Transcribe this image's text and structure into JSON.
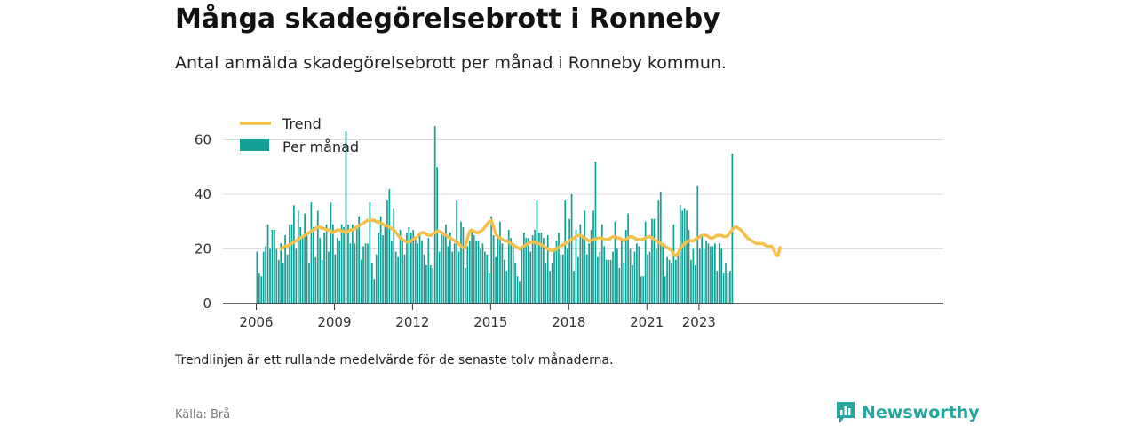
{
  "title": "Många skadegörelsebrott i Ronneby",
  "subtitle": "Antal anmälda skadegörelsebrott per månad i Ronneby kommun.",
  "footnote": "Trendlinjen är ett rullande medelvärde för de senaste tolv månaderna.",
  "source": "Källa: Brå",
  "brand": {
    "name": "Newsworthy",
    "color": "#27a6a0",
    "icon": "newsworthy-logo-icon"
  },
  "colors": {
    "bars": "#13a096",
    "trend": "#f5c04a",
    "grid": "#dddddd",
    "axis": "#333333"
  },
  "chart_data": {
    "type": "bar",
    "x_start": "2006-01",
    "x_label_unit": "month",
    "ylim": [
      0,
      65
    ],
    "yticks": [
      0,
      20,
      40,
      60
    ],
    "xticks": [
      "2006",
      "2009",
      "2012",
      "2015",
      "2018",
      "2021",
      "2023"
    ],
    "legend": {
      "position": "top-left",
      "entries": [
        "Trend",
        "Per månad"
      ]
    },
    "grid": true,
    "series": [
      {
        "name": "Per månad",
        "type": "bar",
        "values": [
          19,
          11,
          10,
          19,
          21,
          29,
          20,
          27,
          27,
          20,
          16,
          22,
          15,
          25,
          18,
          29,
          29,
          36,
          20,
          34,
          28,
          25,
          33,
          25,
          15,
          37,
          28,
          17,
          34,
          24,
          16,
          26,
          29,
          19,
          37,
          29,
          18,
          24,
          23,
          29,
          28,
          63,
          29,
          22,
          29,
          22,
          28,
          32,
          16,
          21,
          22,
          22,
          37,
          15,
          9,
          18,
          26,
          32,
          25,
          28,
          38,
          42,
          23,
          35,
          19,
          17,
          27,
          24,
          18,
          26,
          28,
          26,
          27,
          24,
          22,
          25,
          23,
          18,
          14,
          24,
          14,
          13,
          65,
          50,
          19,
          26,
          25,
          29,
          21,
          26,
          19,
          22,
          38,
          19,
          30,
          28,
          13,
          21,
          23,
          27,
          25,
          23,
          23,
          20,
          22,
          19,
          18,
          11,
          32,
          25,
          17,
          24,
          30,
          22,
          16,
          12,
          27,
          24,
          21,
          15,
          10,
          8,
          21,
          26,
          24,
          24,
          19,
          25,
          27,
          38,
          26,
          26,
          24,
          15,
          25,
          12,
          15,
          20,
          23,
          26,
          18,
          18,
          38,
          20,
          31,
          40,
          12,
          27,
          17,
          29,
          24,
          34,
          18,
          22,
          27,
          34,
          52,
          17,
          19,
          29,
          21,
          16,
          16,
          16,
          19,
          30,
          20,
          13,
          24,
          15,
          27,
          33,
          20,
          14,
          19,
          22,
          21,
          10,
          10,
          30,
          18,
          19,
          31,
          31,
          20,
          38,
          41,
          21,
          10,
          17,
          16,
          15,
          29,
          16,
          19,
          36,
          34,
          35,
          34,
          27,
          16,
          20,
          14,
          43,
          20,
          25,
          20,
          23,
          22,
          21,
          21,
          22,
          12,
          22,
          20,
          11,
          15,
          11,
          12,
          55
        ]
      },
      {
        "name": "Trend",
        "type": "line",
        "start_index": 11,
        "values": [
          20,
          20.5,
          21,
          21,
          21.5,
          22,
          22.5,
          23,
          23.5,
          24,
          24.5,
          25,
          25.5,
          26,
          26.5,
          27,
          27.5,
          28,
          28,
          27.5,
          27.5,
          27,
          27,
          26.5,
          26,
          26.5,
          27,
          27,
          26.5,
          26.5,
          26,
          26.5,
          27,
          27,
          27.5,
          28,
          28.5,
          29,
          29.5,
          30,
          30.5,
          30.5,
          30.5,
          30.5,
          30,
          30,
          29.5,
          29,
          28.5,
          28.5,
          28,
          27.5,
          27,
          26,
          25,
          24,
          23.5,
          23,
          22.5,
          22.5,
          23,
          23.5,
          24,
          24.5,
          25.5,
          26,
          26,
          25.5,
          25,
          25,
          25.5,
          26,
          26.5,
          26.5,
          26,
          25.5,
          25,
          24.5,
          24,
          23.5,
          23,
          22.5,
          22,
          21,
          20.5,
          20.5,
          24,
          26.5,
          27,
          26.5,
          26,
          26,
          26.5,
          27,
          28,
          29,
          30,
          30.5,
          28,
          25.5,
          24.5,
          24,
          23.5,
          23,
          23,
          22.5,
          22,
          21.5,
          21,
          20.5,
          20,
          20.5,
          21,
          21.5,
          22,
          22.5,
          22.5,
          22.5,
          22,
          22,
          21.5,
          21,
          20.5,
          20,
          19.5,
          19.5,
          19.5,
          20,
          20.5,
          21,
          21.5,
          22,
          22.5,
          23,
          23.5,
          24,
          24.5,
          25,
          25,
          24.5,
          24,
          23.5,
          23,
          23,
          23.5,
          23.5,
          24,
          24,
          24,
          23.5,
          23.5,
          23.5,
          24,
          24.5,
          24.5,
          24,
          24,
          23.5,
          23,
          23.5,
          24,
          24.5,
          24.5,
          24,
          23.5,
          23.5,
          23.5,
          23.5,
          24,
          24.5,
          24.5,
          24,
          23.5,
          23,
          22.5,
          22,
          21.5,
          21,
          20.5,
          20,
          19.5,
          18,
          17.5,
          18.5,
          20,
          21,
          22,
          22.5,
          23,
          23,
          23,
          23.5,
          24,
          24.5,
          25,
          25,
          25,
          24.5,
          24,
          24,
          24.5,
          25,
          25,
          25,
          24.5,
          24.5,
          25,
          26,
          27,
          28,
          28,
          27.5,
          27,
          26,
          25,
          24,
          23.5,
          23,
          22.5,
          22,
          22,
          22,
          22,
          21.5,
          21,
          21,
          21,
          20,
          18,
          17.5,
          20.5
        ]
      }
    ]
  }
}
